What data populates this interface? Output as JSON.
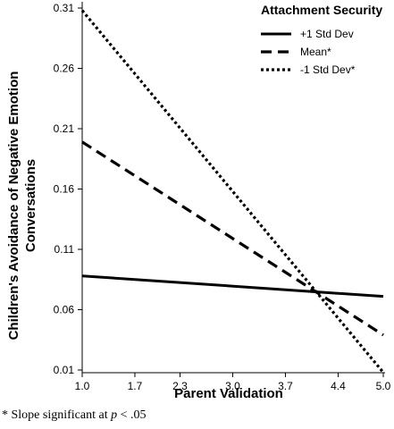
{
  "chart_data": {
    "type": "line",
    "xlabel": "Parent Validation",
    "ylabel_lines": [
      "Children's Avoidance of Negative Emotion",
      "Conversations"
    ],
    "x_ticks": [
      "1.0",
      "1.7",
      "2.3",
      "3.0",
      "3.7",
      "4.4",
      "5.0"
    ],
    "y_ticks": [
      "0.01",
      "0.06",
      "0.11",
      "0.16",
      "0.21",
      "0.26",
      "0.31"
    ],
    "xlim": [
      1.0,
      5.0
    ],
    "ylim": [
      0.01,
      0.31
    ],
    "grid": false,
    "legend": {
      "title": "Attachment Security",
      "placement": "top-right"
    },
    "series": [
      {
        "name": "+1 Std Dev",
        "style": "solid",
        "x": [
          1.0,
          5.0
        ],
        "y": [
          0.088,
          0.071
        ]
      },
      {
        "name": "Mean*",
        "style": "dashed",
        "x": [
          1.0,
          5.0
        ],
        "y": [
          0.199,
          0.039
        ]
      },
      {
        "name": "-1 Std Dev*",
        "style": "dotted",
        "x": [
          1.0,
          5.0
        ],
        "y": [
          0.308,
          0.008
        ]
      }
    ]
  },
  "footnote": {
    "prefix": "* Slope significant at ",
    "var": "p",
    "suffix": " < .05"
  }
}
